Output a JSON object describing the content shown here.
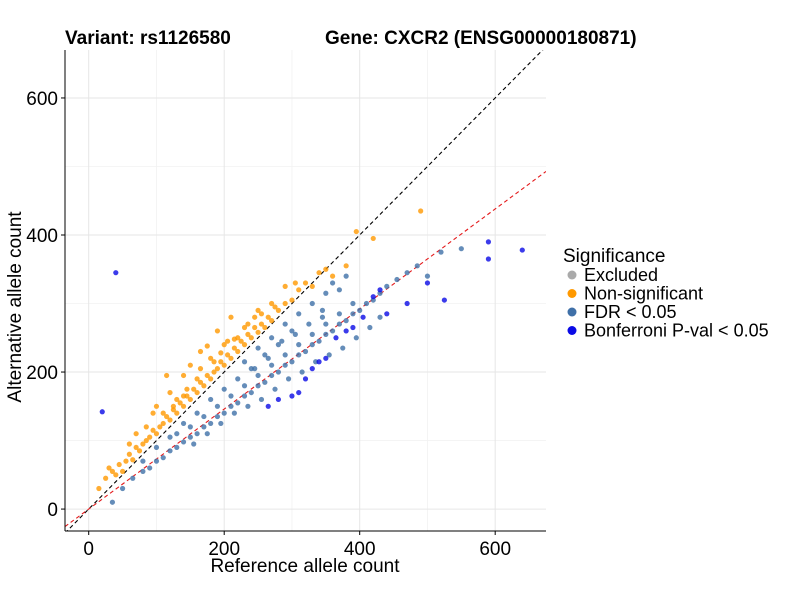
{
  "header": {
    "variant": "Variant: rs1126580",
    "gene": "Gene: CXCR2 (ENSG00000180871)"
  },
  "chart_data": {
    "type": "scatter",
    "title_left": "Variant: rs1126580",
    "title_right": "Gene: CXCR2 (ENSG00000180871)",
    "xlabel": "Reference allele count",
    "ylabel": "Alternative allele count",
    "xlim": [
      -35,
      675
    ],
    "ylim": [
      -32,
      670
    ],
    "x_ticks": [
      0,
      200,
      400,
      600
    ],
    "y_ticks": [
      0,
      200,
      400,
      600
    ],
    "grid": true,
    "reference_lines": [
      {
        "name": "identity",
        "slope": 1.0,
        "intercept": 0,
        "color": "#000000",
        "style": "dashed"
      },
      {
        "name": "fit",
        "slope": 0.73,
        "intercept": 0,
        "color": "#e41a1c",
        "style": "dashed"
      }
    ],
    "legend": {
      "title": "Significance",
      "position": "right",
      "entries": [
        {
          "label": "Excluded",
          "color": "#aaaaaa"
        },
        {
          "label": "Non-significant",
          "color": "#ff9900"
        },
        {
          "label": "FDR < 0.05",
          "color": "#3f70a8"
        },
        {
          "label": "Bonferroni P-val < 0.05",
          "color": "#0a0ae6"
        }
      ]
    },
    "series": [
      {
        "name": "Non-significant",
        "color": "#ff9900",
        "points": [
          [
            15,
            30
          ],
          [
            25,
            45
          ],
          [
            30,
            60
          ],
          [
            40,
            50
          ],
          [
            45,
            65
          ],
          [
            50,
            55
          ],
          [
            55,
            70
          ],
          [
            60,
            80
          ],
          [
            65,
            72
          ],
          [
            70,
            90
          ],
          [
            75,
            85
          ],
          [
            80,
            95
          ],
          [
            85,
            100
          ],
          [
            90,
            105
          ],
          [
            95,
            115
          ],
          [
            100,
            110
          ],
          [
            105,
            120
          ],
          [
            110,
            125
          ],
          [
            115,
            135
          ],
          [
            120,
            130
          ],
          [
            125,
            145
          ],
          [
            130,
            140
          ],
          [
            135,
            155
          ],
          [
            140,
            150
          ],
          [
            145,
            165
          ],
          [
            150,
            160
          ],
          [
            155,
            175
          ],
          [
            160,
            170
          ],
          [
            165,
            185
          ],
          [
            170,
            180
          ],
          [
            175,
            195
          ],
          [
            180,
            190
          ],
          [
            185,
            200
          ],
          [
            190,
            205
          ],
          [
            195,
            215
          ],
          [
            200,
            210
          ],
          [
            205,
            225
          ],
          [
            210,
            220
          ],
          [
            215,
            235
          ],
          [
            220,
            230
          ],
          [
            225,
            245
          ],
          [
            230,
            240
          ],
          [
            235,
            255
          ],
          [
            240,
            250
          ],
          [
            245,
            265
          ],
          [
            250,
            258
          ],
          [
            255,
            270
          ],
          [
            260,
            265
          ],
          [
            265,
            280
          ],
          [
            270,
            275
          ],
          [
            280,
            290
          ],
          [
            290,
            300
          ],
          [
            300,
            305
          ],
          [
            310,
            320
          ],
          [
            320,
            330
          ],
          [
            330,
            325
          ],
          [
            340,
            345
          ],
          [
            350,
            350
          ],
          [
            360,
            340
          ],
          [
            380,
            355
          ],
          [
            395,
            405
          ],
          [
            420,
            395
          ],
          [
            490,
            435
          ],
          [
            120,
            170
          ],
          [
            150,
            210
          ],
          [
            175,
            238
          ],
          [
            190,
            260
          ],
          [
            210,
            280
          ],
          [
            115,
            195
          ],
          [
            165,
            230
          ],
          [
            230,
            265
          ],
          [
            140,
            195
          ],
          [
            95,
            140
          ],
          [
            70,
            110
          ],
          [
            180,
            220
          ],
          [
            200,
            240
          ],
          [
            220,
            250
          ],
          [
            250,
            290
          ],
          [
            130,
            160
          ],
          [
            160,
            190
          ],
          [
            110,
            140
          ],
          [
            85,
            120
          ],
          [
            60,
            95
          ],
          [
            35,
            55
          ],
          [
            270,
            300
          ],
          [
            290,
            325
          ],
          [
            305,
            330
          ],
          [
            245,
            280
          ],
          [
            185,
            215
          ],
          [
            205,
            245
          ],
          [
            125,
            150
          ],
          [
            145,
            175
          ],
          [
            100,
            150
          ],
          [
            140,
            165
          ],
          [
            165,
            205
          ],
          [
            195,
            228
          ],
          [
            215,
            248
          ],
          [
            235,
            270
          ],
          [
            255,
            285
          ],
          [
            275,
            295
          ]
        ]
      },
      {
        "name": "FDR < 0.05",
        "color": "#3f70a8",
        "points": [
          [
            35,
            10
          ],
          [
            50,
            30
          ],
          [
            65,
            45
          ],
          [
            80,
            55
          ],
          [
            90,
            60
          ],
          [
            100,
            70
          ],
          [
            110,
            75
          ],
          [
            120,
            85
          ],
          [
            130,
            90
          ],
          [
            140,
            98
          ],
          [
            150,
            105
          ],
          [
            160,
            110
          ],
          [
            170,
            120
          ],
          [
            180,
            125
          ],
          [
            190,
            135
          ],
          [
            200,
            140
          ],
          [
            210,
            150
          ],
          [
            220,
            155
          ],
          [
            230,
            165
          ],
          [
            240,
            170
          ],
          [
            250,
            180
          ],
          [
            260,
            185
          ],
          [
            270,
            195
          ],
          [
            280,
            200
          ],
          [
            290,
            210
          ],
          [
            300,
            215
          ],
          [
            310,
            225
          ],
          [
            320,
            230
          ],
          [
            330,
            240
          ],
          [
            340,
            245
          ],
          [
            350,
            255
          ],
          [
            360,
            260
          ],
          [
            370,
            270
          ],
          [
            380,
            275
          ],
          [
            390,
            285
          ],
          [
            400,
            290
          ],
          [
            410,
            300
          ],
          [
            420,
            305
          ],
          [
            430,
            315
          ],
          [
            440,
            325
          ],
          [
            455,
            335
          ],
          [
            470,
            345
          ],
          [
            485,
            355
          ],
          [
            500,
            340
          ],
          [
            520,
            375
          ],
          [
            550,
            380
          ],
          [
            130,
            110
          ],
          [
            150,
            120
          ],
          [
            170,
            135
          ],
          [
            190,
            150
          ],
          [
            210,
            165
          ],
          [
            230,
            180
          ],
          [
            250,
            195
          ],
          [
            270,
            210
          ],
          [
            290,
            225
          ],
          [
            310,
            240
          ],
          [
            330,
            255
          ],
          [
            350,
            270
          ],
          [
            370,
            285
          ],
          [
            390,
            300
          ],
          [
            360,
            330
          ],
          [
            380,
            340
          ],
          [
            345,
            290
          ],
          [
            300,
            260
          ],
          [
            280,
            240
          ],
          [
            260,
            225
          ],
          [
            240,
            205
          ],
          [
            220,
            190
          ],
          [
            200,
            175
          ],
          [
            180,
            160
          ],
          [
            160,
            140
          ],
          [
            140,
            125
          ],
          [
            120,
            105
          ],
          [
            100,
            90
          ],
          [
            80,
            70
          ],
          [
            155,
            95
          ],
          [
            175,
            110
          ],
          [
            195,
            125
          ],
          [
            215,
            140
          ],
          [
            235,
            150
          ],
          [
            255,
            160
          ],
          [
            275,
            175
          ],
          [
            295,
            190
          ],
          [
            315,
            200
          ],
          [
            335,
            215
          ],
          [
            355,
            225
          ],
          [
            375,
            235
          ],
          [
            395,
            250
          ],
          [
            415,
            265
          ],
          [
            430,
            280
          ],
          [
            250,
            235
          ],
          [
            230,
            215
          ],
          [
            270,
            250
          ],
          [
            290,
            270
          ],
          [
            310,
            285
          ],
          [
            330,
            300
          ],
          [
            350,
            315
          ],
          [
            370,
            320
          ],
          [
            245,
            205
          ],
          [
            265,
            220
          ],
          [
            285,
            245
          ],
          [
            305,
            255
          ],
          [
            325,
            270
          ],
          [
            345,
            280
          ]
        ]
      },
      {
        "name": "Bonferroni P-val < 0.05",
        "color": "#0a0ae6",
        "points": [
          [
            40,
            345
          ],
          [
            20,
            142
          ],
          [
            300,
            165
          ],
          [
            310,
            170
          ],
          [
            330,
            205
          ],
          [
            340,
            215
          ],
          [
            350,
            220
          ],
          [
            365,
            250
          ],
          [
            380,
            260
          ],
          [
            420,
            310
          ],
          [
            440,
            285
          ],
          [
            470,
            300
          ],
          [
            525,
            305
          ],
          [
            590,
            390
          ],
          [
            590,
            365
          ],
          [
            640,
            378
          ],
          [
            265,
            150
          ],
          [
            280,
            160
          ],
          [
            320,
            190
          ],
          [
            390,
            265
          ],
          [
            405,
            280
          ],
          [
            430,
            320
          ],
          [
            500,
            330
          ]
        ]
      }
    ]
  }
}
